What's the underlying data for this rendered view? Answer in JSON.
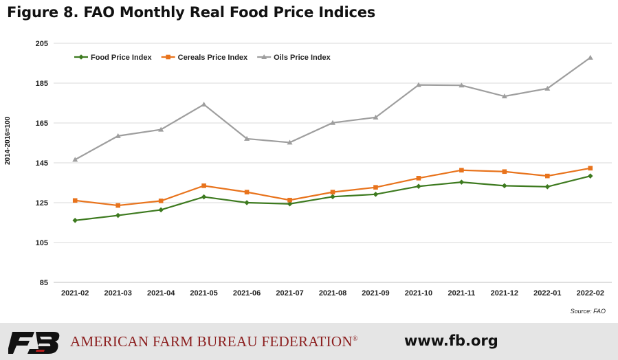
{
  "header": {
    "title": "Figure 8. FAO Monthly Real Food Price Indices"
  },
  "chart_data": {
    "type": "line",
    "title": "",
    "xlabel": "",
    "ylabel": "2014-2016=100",
    "ylim": [
      85,
      205
    ],
    "yticks": [
      85,
      105,
      125,
      145,
      165,
      185,
      205
    ],
    "grid": "horizontal",
    "legend": "top-left",
    "categories": [
      "2021-02",
      "2021-03",
      "2021-04",
      "2021-05",
      "2021-06",
      "2021-07",
      "2021-08",
      "2021-09",
      "2021-10",
      "2021-11",
      "2021-12",
      "2022-01",
      "2022-02"
    ],
    "series": [
      {
        "name": "Food Price Index",
        "color": "#3d7a1f",
        "marker": "diamond",
        "values": [
          116.1,
          118.6,
          121.4,
          127.9,
          125.0,
          124.4,
          128.0,
          129.2,
          133.2,
          135.3,
          133.5,
          133.0,
          138.4
        ]
      },
      {
        "name": "Cereals Price Index",
        "color": "#e8731c",
        "marker": "square",
        "values": [
          126.1,
          123.6,
          125.9,
          133.5,
          130.3,
          126.3,
          130.3,
          132.7,
          137.3,
          141.3,
          140.6,
          138.4,
          142.3
        ]
      },
      {
        "name": "Oils Price Index",
        "color": "#9e9e9e",
        "marker": "triangle",
        "values": [
          146.6,
          158.5,
          161.7,
          174.3,
          157.1,
          155.2,
          165.1,
          167.8,
          184.1,
          183.9,
          178.4,
          182.3,
          197.8
        ]
      }
    ]
  },
  "source": "Source: FAO",
  "footer": {
    "organization": "AMERICAN FARM BUREAU FEDERATION",
    "registered": "®",
    "website": "www.fb.org",
    "logo_text": "FB"
  }
}
